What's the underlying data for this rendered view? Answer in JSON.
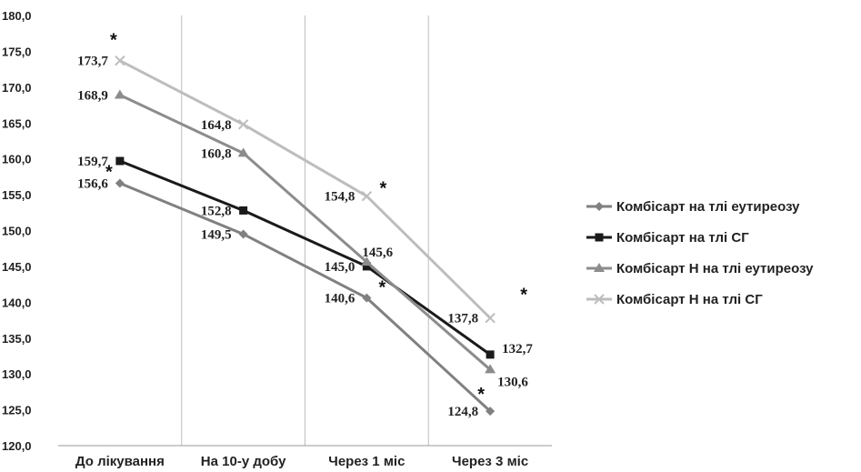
{
  "chart_data": {
    "type": "line",
    "categories": [
      "До лікування",
      "На 10-у добу",
      "Через 1 міс",
      "Через 3 міс"
    ],
    "ylim": [
      120,
      180
    ],
    "ytick_labels": [
      "120,0",
      "125,0",
      "130,0",
      "135,0",
      "140,0",
      "145,0",
      "150,0",
      "155,0",
      "160,0",
      "165,0",
      "170,0",
      "175,0",
      "180,0"
    ],
    "grid": "vertical category separators",
    "legend_position": "right",
    "series": [
      {
        "name": "Комбісарт на тлі еутиреозу",
        "values": [
          156.6,
          149.5,
          140.6,
          124.8
        ],
        "labels": [
          "156,6",
          "149,5",
          "140,6",
          "124,8"
        ],
        "asterisks": [
          true,
          false,
          true,
          true
        ],
        "color": "#808080",
        "marker": "diamond"
      },
      {
        "name": "Комбісарт на тлі СГ",
        "values": [
          159.7,
          152.8,
          145.0,
          132.7
        ],
        "labels": [
          "159,7",
          "152,8",
          "145,0",
          "132,7"
        ],
        "asterisks": [
          false,
          false,
          false,
          false
        ],
        "color": "#1a1a1a",
        "marker": "square"
      },
      {
        "name": "Комбісарт Н на тлі еутиреозу",
        "values": [
          168.9,
          160.8,
          145.6,
          130.6
        ],
        "labels": [
          "168,9",
          "160,8",
          "145,6",
          "130,6"
        ],
        "asterisks": [
          false,
          false,
          false,
          false
        ],
        "color": "#8c8c8c",
        "marker": "triangle"
      },
      {
        "name": "Комбісарт Н на тлі СГ",
        "values": [
          173.7,
          164.8,
          154.8,
          137.8
        ],
        "labels": [
          "173,7",
          "164,8",
          "154,8",
          "137,8"
        ],
        "asterisks": [
          true,
          false,
          true,
          true
        ],
        "color": "#bdbdbd",
        "marker": "x"
      }
    ],
    "asterisk_symbol": "*"
  }
}
